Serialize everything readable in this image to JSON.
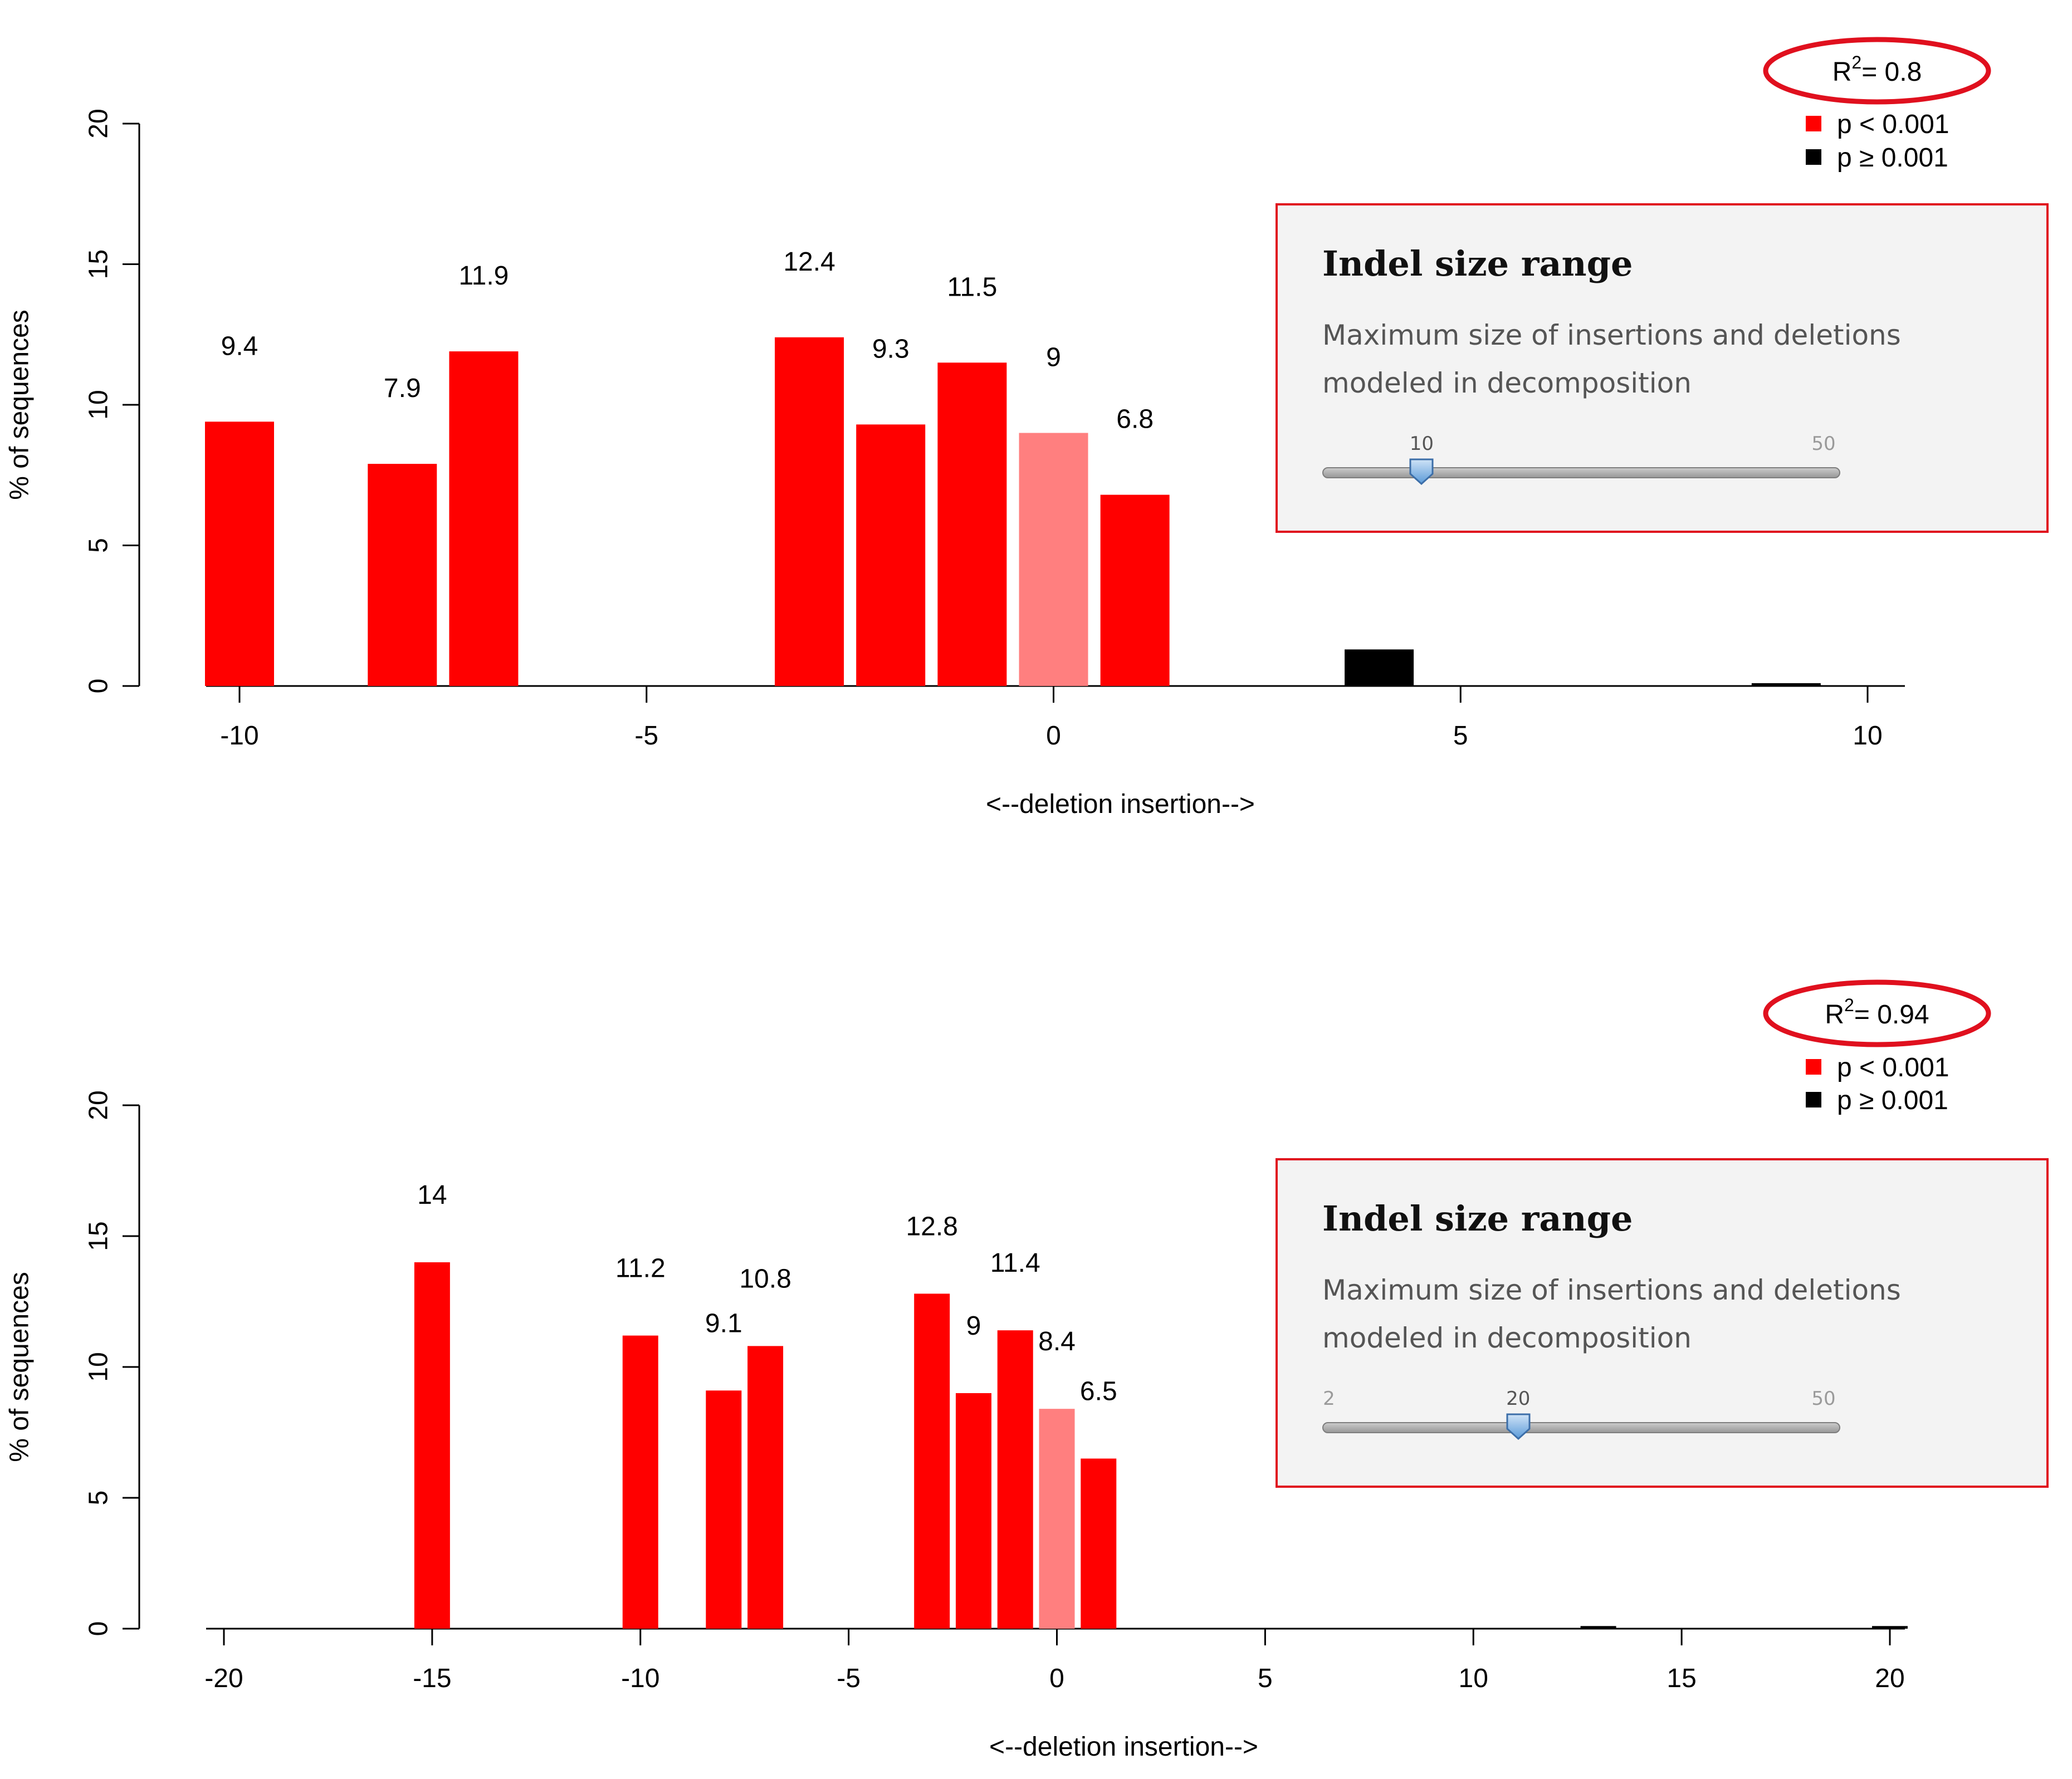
{
  "colors": {
    "significant": "#ff0000",
    "highlight": "#ff7f7f",
    "non_significant": "#000000",
    "panel_border": "#e0101e",
    "ellipse": "#e0101e"
  },
  "chart_data": [
    {
      "type": "bar",
      "xlabel": "<--deletion     insertion-->",
      "ylabel": "% of sequences",
      "xlim": [
        -10,
        10
      ],
      "ylim": [
        0,
        20
      ],
      "x_ticks": [
        -10,
        -5,
        0,
        5,
        10
      ],
      "y_ticks": [
        0,
        5,
        10,
        15,
        20
      ],
      "bars": [
        {
          "x": -10,
          "value": 9.4,
          "label": "9.4",
          "category": "p<0.001"
        },
        {
          "x": -8,
          "value": 7.9,
          "label": "7.9",
          "category": "p<0.001"
        },
        {
          "x": -7,
          "value": 11.9,
          "label": "11.9",
          "category": "p<0.001"
        },
        {
          "x": -3,
          "value": 12.4,
          "label": "12.4",
          "category": "p<0.001"
        },
        {
          "x": -2,
          "value": 9.3,
          "label": "9.3",
          "category": "p<0.001"
        },
        {
          "x": -1,
          "value": 11.5,
          "label": "11.5",
          "category": "p<0.001"
        },
        {
          "x": 0,
          "value": 9,
          "label": "9",
          "category": "wild-type"
        },
        {
          "x": 1,
          "value": 6.8,
          "label": "6.8",
          "category": "p<0.001"
        },
        {
          "x": 4,
          "value": 1.3,
          "category": "p>=0.001"
        },
        {
          "x": 9,
          "value": 0.1,
          "category": "p>=0.001"
        }
      ],
      "r2_label": "R",
      "r2_text": "= 0.8",
      "legend": [
        {
          "label": "p < 0.001",
          "color": "#ff0000"
        },
        {
          "label": "p ≥ 0.001",
          "color": "#000000"
        }
      ],
      "legend_position": "top-right",
      "panel": {
        "title": "Indel size range",
        "description": "Maximum size of insertions and deletions modeled in decomposition",
        "slider": {
          "min_label": "",
          "value": 10,
          "max": 50
        }
      }
    },
    {
      "type": "bar",
      "xlabel": "<--deletion     insertion-->",
      "ylabel": "% of sequences",
      "xlim": [
        -20,
        20
      ],
      "ylim": [
        0,
        20
      ],
      "x_ticks": [
        -20,
        -15,
        -10,
        -5,
        0,
        5,
        10,
        15,
        20
      ],
      "y_ticks": [
        0,
        5,
        10,
        15,
        20
      ],
      "bars": [
        {
          "x": -15,
          "value": 14,
          "label": "14",
          "category": "p<0.001"
        },
        {
          "x": -10,
          "value": 11.2,
          "label": "11.2",
          "category": "p<0.001"
        },
        {
          "x": -8,
          "value": 9.1,
          "label": "9.1",
          "category": "p<0.001"
        },
        {
          "x": -7,
          "value": 10.8,
          "label": "10.8",
          "category": "p<0.001"
        },
        {
          "x": -3,
          "value": 12.8,
          "label": "12.8",
          "category": "p<0.001"
        },
        {
          "x": -2,
          "value": 9,
          "label": "9",
          "category": "p<0.001"
        },
        {
          "x": -1,
          "value": 11.4,
          "label": "11.4",
          "category": "p<0.001"
        },
        {
          "x": 0,
          "value": 8.4,
          "label": "8.4",
          "category": "wild-type"
        },
        {
          "x": 1,
          "value": 6.5,
          "label": "6.5",
          "category": "p<0.001"
        },
        {
          "x": 13,
          "value": 0.1,
          "category": "p>=0.001"
        },
        {
          "x": 20,
          "value": 0.1,
          "category": "p>=0.001"
        }
      ],
      "r2_label": "R",
      "r2_text": "= 0.94",
      "legend": [
        {
          "label": "p < 0.001",
          "color": "#ff0000"
        },
        {
          "label": "p ≥ 0.001",
          "color": "#000000"
        }
      ],
      "legend_position": "top-right",
      "panel": {
        "title": "Indel size range",
        "description": "Maximum size of insertions and deletions modeled in decomposition",
        "slider": {
          "min_label": "2",
          "value": 20,
          "max": 50
        }
      }
    }
  ]
}
